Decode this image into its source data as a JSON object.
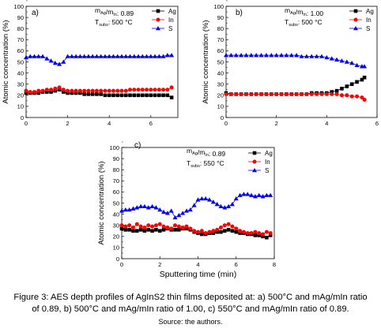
{
  "figure": {
    "caption_line1": "Figure 3: AES depth profiles of AgInS2 thin films deposited at: a) 500°C and mAg/mIn ratio",
    "caption_line2": "of 0.89, b) 500°C and mAg/mIn ratio of 1.00, c) 550°C and mAg/mIn ratio of 0.89.",
    "source": "Source: the authors."
  },
  "chart_data": [
    {
      "type": "scatter",
      "panel_label": "a)",
      "annotation_ratio_prefix": "m",
      "annotation_ratio_sub1": "Ag",
      "annotation_ratio_sub2": "In",
      "annotation_ratio_value": ": 0.89",
      "annotation_temp_prefix": "T",
      "annotation_temp_sub": "subs",
      "annotation_temp_value": ": 500 °C",
      "xlabel": "",
      "ylabel": "Atomic concentration (%)",
      "xlim": [
        0,
        7.3
      ],
      "ylim": [
        0,
        100
      ],
      "xticks": [
        0,
        2,
        4,
        6
      ],
      "yticks": [
        0,
        10,
        20,
        30,
        40,
        50,
        60,
        70,
        80,
        90,
        100
      ],
      "legend_position": "top-right",
      "series": [
        {
          "name": "Ag",
          "color": "#000000",
          "marker": "square",
          "x": [
            0,
            0.2,
            0.4,
            0.6,
            0.8,
            1.0,
            1.2,
            1.4,
            1.6,
            1.8,
            2.0,
            2.2,
            2.4,
            2.6,
            2.8,
            3.0,
            3.2,
            3.4,
            3.6,
            3.8,
            4.0,
            4.2,
            4.4,
            4.6,
            4.8,
            5.0,
            5.2,
            5.4,
            5.6,
            5.8,
            6.0,
            6.2,
            6.4,
            6.6,
            6.8,
            7.0
          ],
          "y": [
            22,
            22,
            22,
            22,
            23,
            23,
            23,
            24,
            25,
            23,
            22,
            22,
            22,
            22,
            21,
            21,
            21,
            21,
            21,
            20,
            20,
            20,
            20,
            20,
            20,
            20,
            20,
            20,
            20,
            20,
            20,
            20,
            20,
            20,
            20,
            18
          ]
        },
        {
          "name": "In",
          "color": "#ff0000",
          "marker": "circle",
          "x": [
            0,
            0.2,
            0.4,
            0.6,
            0.8,
            1.0,
            1.2,
            1.4,
            1.6,
            1.8,
            2.0,
            2.2,
            2.4,
            2.6,
            2.8,
            3.0,
            3.2,
            3.4,
            3.6,
            3.8,
            4.0,
            4.2,
            4.4,
            4.6,
            4.8,
            5.0,
            5.2,
            5.4,
            5.6,
            5.8,
            6.0,
            6.2,
            6.4,
            6.6,
            6.8,
            7.0
          ],
          "y": [
            24,
            23,
            23,
            24,
            24,
            25,
            25,
            26,
            27,
            25,
            24,
            24,
            24,
            24,
            24,
            24,
            24,
            24,
            24,
            24,
            24,
            24,
            24,
            24,
            24,
            25,
            25,
            25,
            25,
            25,
            25,
            25,
            25,
            25,
            25,
            27
          ]
        },
        {
          "name": "S",
          "color": "#0000ff",
          "marker": "triangle",
          "x": [
            0,
            0.2,
            0.4,
            0.6,
            0.8,
            1.0,
            1.2,
            1.4,
            1.6,
            1.8,
            2.0,
            2.2,
            2.4,
            2.6,
            2.8,
            3.0,
            3.2,
            3.4,
            3.6,
            3.8,
            4.0,
            4.2,
            4.4,
            4.6,
            4.8,
            5.0,
            5.2,
            5.4,
            5.6,
            5.8,
            6.0,
            6.2,
            6.4,
            6.6,
            6.8,
            7.0
          ],
          "y": [
            54,
            55,
            55,
            55,
            55,
            53,
            51,
            49,
            48,
            50,
            55,
            55,
            55,
            55,
            55,
            55,
            55,
            55,
            55,
            55,
            55,
            55,
            55,
            55,
            55,
            55,
            55,
            55,
            55,
            55,
            55,
            55,
            55,
            55,
            56,
            56
          ]
        }
      ]
    },
    {
      "type": "scatter",
      "panel_label": "b)",
      "annotation_ratio_prefix": "m",
      "annotation_ratio_sub1": "Ag",
      "annotation_ratio_sub2": "In",
      "annotation_ratio_value": ": 1.00",
      "annotation_temp_prefix": "T",
      "annotation_temp_sub": "subs",
      "annotation_temp_value": ": 500 °C",
      "xlabel": "",
      "ylabel": "Atomic concentration (%)",
      "xlim": [
        0,
        6
      ],
      "ylim": [
        0,
        100
      ],
      "xticks": [
        0,
        2,
        4,
        6
      ],
      "yticks": [
        0,
        10,
        20,
        30,
        40,
        50,
        60,
        70,
        80,
        90,
        100
      ],
      "legend_position": "top-right",
      "series": [
        {
          "name": "Ag",
          "color": "#000000",
          "marker": "square",
          "x": [
            0,
            0.2,
            0.4,
            0.6,
            0.8,
            1.0,
            1.2,
            1.4,
            1.6,
            1.8,
            2.0,
            2.2,
            2.4,
            2.6,
            2.8,
            3.0,
            3.2,
            3.4,
            3.6,
            3.8,
            4.0,
            4.2,
            4.4,
            4.6,
            4.8,
            5.0,
            5.2,
            5.4,
            5.5
          ],
          "y": [
            22,
            21,
            21,
            21,
            21,
            21,
            21,
            21,
            21,
            21,
            21,
            21,
            21,
            21,
            21,
            21,
            21,
            22,
            22,
            22,
            22,
            23,
            24,
            26,
            28,
            30,
            32,
            34,
            36
          ]
        },
        {
          "name": "In",
          "color": "#ff0000",
          "marker": "circle",
          "x": [
            0,
            0.2,
            0.4,
            0.6,
            0.8,
            1.0,
            1.2,
            1.4,
            1.6,
            1.8,
            2.0,
            2.2,
            2.4,
            2.6,
            2.8,
            3.0,
            3.2,
            3.4,
            3.6,
            3.8,
            4.0,
            4.2,
            4.4,
            4.6,
            4.8,
            5.0,
            5.2,
            5.4,
            5.5
          ],
          "y": [
            21,
            21,
            21,
            21,
            21,
            21,
            21,
            21,
            21,
            21,
            21,
            21,
            21,
            21,
            21,
            21,
            21,
            21,
            21,
            21,
            21,
            21,
            21,
            20,
            20,
            19,
            19,
            18,
            16
          ]
        },
        {
          "name": "S",
          "color": "#0000ff",
          "marker": "triangle",
          "x": [
            0,
            0.2,
            0.4,
            0.6,
            0.8,
            1.0,
            1.2,
            1.4,
            1.6,
            1.8,
            2.0,
            2.2,
            2.4,
            2.6,
            2.8,
            3.0,
            3.2,
            3.4,
            3.6,
            3.8,
            4.0,
            4.2,
            4.4,
            4.6,
            4.8,
            5.0,
            5.2,
            5.4,
            5.5
          ],
          "y": [
            56,
            56,
            56,
            56,
            56,
            56,
            56,
            56,
            56,
            56,
            56,
            56,
            56,
            56,
            56,
            55,
            55,
            55,
            55,
            55,
            54,
            53,
            52,
            51,
            50,
            49,
            47,
            46,
            46
          ]
        }
      ]
    },
    {
      "type": "scatter",
      "panel_label": "c)",
      "annotation_ratio_prefix": "m",
      "annotation_ratio_sub1": "Ag",
      "annotation_ratio_sub2": "In",
      "annotation_ratio_value": ": 0.89",
      "annotation_temp_prefix": "T",
      "annotation_temp_sub": "subs",
      "annotation_temp_value": ": 550 °C",
      "xlabel": "Sputtering time (min)",
      "ylabel": "Atomic concentration (%)",
      "xlim": [
        0,
        8
      ],
      "ylim": [
        0,
        100
      ],
      "xticks": [
        0,
        2,
        4,
        6,
        8
      ],
      "yticks": [
        0,
        10,
        20,
        30,
        40,
        50,
        60,
        70,
        80,
        90,
        100
      ],
      "legend_position": "top-right",
      "series": [
        {
          "name": "Ag",
          "color": "#000000",
          "marker": "square",
          "x": [
            0,
            0.2,
            0.4,
            0.6,
            0.8,
            1.0,
            1.2,
            1.4,
            1.6,
            1.8,
            2.0,
            2.2,
            2.4,
            2.6,
            2.8,
            3.0,
            3.2,
            3.4,
            3.6,
            3.8,
            4.0,
            4.2,
            4.4,
            4.6,
            4.8,
            5.0,
            5.2,
            5.4,
            5.6,
            5.8,
            6.0,
            6.2,
            6.4,
            6.6,
            6.8,
            7.0,
            7.2,
            7.4,
            7.6,
            7.8
          ],
          "y": [
            27,
            26,
            26,
            25,
            25,
            26,
            25,
            26,
            25,
            26,
            25,
            26,
            27,
            26,
            26,
            26,
            27,
            27,
            26,
            24,
            23,
            22,
            22,
            23,
            23,
            24,
            24,
            25,
            26,
            25,
            24,
            23,
            23,
            22,
            22,
            21,
            21,
            20,
            19,
            21
          ]
        },
        {
          "name": "In",
          "color": "#ff0000",
          "marker": "circle",
          "x": [
            0,
            0.2,
            0.4,
            0.6,
            0.8,
            1.0,
            1.2,
            1.4,
            1.6,
            1.8,
            2.0,
            2.2,
            2.4,
            2.6,
            2.8,
            3.0,
            3.2,
            3.4,
            3.6,
            3.8,
            4.0,
            4.2,
            4.4,
            4.6,
            4.8,
            5.0,
            5.2,
            5.4,
            5.6,
            5.8,
            6.0,
            6.2,
            6.4,
            6.6,
            6.8,
            7.0,
            7.2,
            7.4,
            7.6,
            7.8
          ],
          "y": [
            30,
            29,
            30,
            28,
            31,
            29,
            28,
            30,
            29,
            30,
            31,
            29,
            28,
            27,
            30,
            29,
            28,
            29,
            27,
            25,
            24,
            25,
            23,
            24,
            25,
            26,
            28,
            30,
            31,
            29,
            27,
            25,
            24,
            23,
            23,
            24,
            23,
            22,
            24,
            23
          ]
        },
        {
          "name": "S",
          "color": "#0000ff",
          "marker": "triangle",
          "x": [
            0,
            0.2,
            0.4,
            0.6,
            0.8,
            1.0,
            1.2,
            1.4,
            1.6,
            1.8,
            2.0,
            2.2,
            2.4,
            2.6,
            2.8,
            3.0,
            3.2,
            3.4,
            3.6,
            3.8,
            4.0,
            4.2,
            4.4,
            4.6,
            4.8,
            5.0,
            5.2,
            5.4,
            5.6,
            5.8,
            6.0,
            6.2,
            6.4,
            6.6,
            6.8,
            7.0,
            7.2,
            7.4,
            7.6,
            7.8
          ],
          "y": [
            43,
            44,
            44,
            45,
            46,
            47,
            47,
            46,
            47,
            46,
            44,
            42,
            41,
            43,
            37,
            39,
            41,
            43,
            44,
            48,
            53,
            54,
            54,
            53,
            51,
            49,
            47,
            46,
            47,
            49,
            54,
            57,
            58,
            58,
            57,
            56,
            57,
            56,
            57,
            57
          ]
        }
      ]
    }
  ]
}
